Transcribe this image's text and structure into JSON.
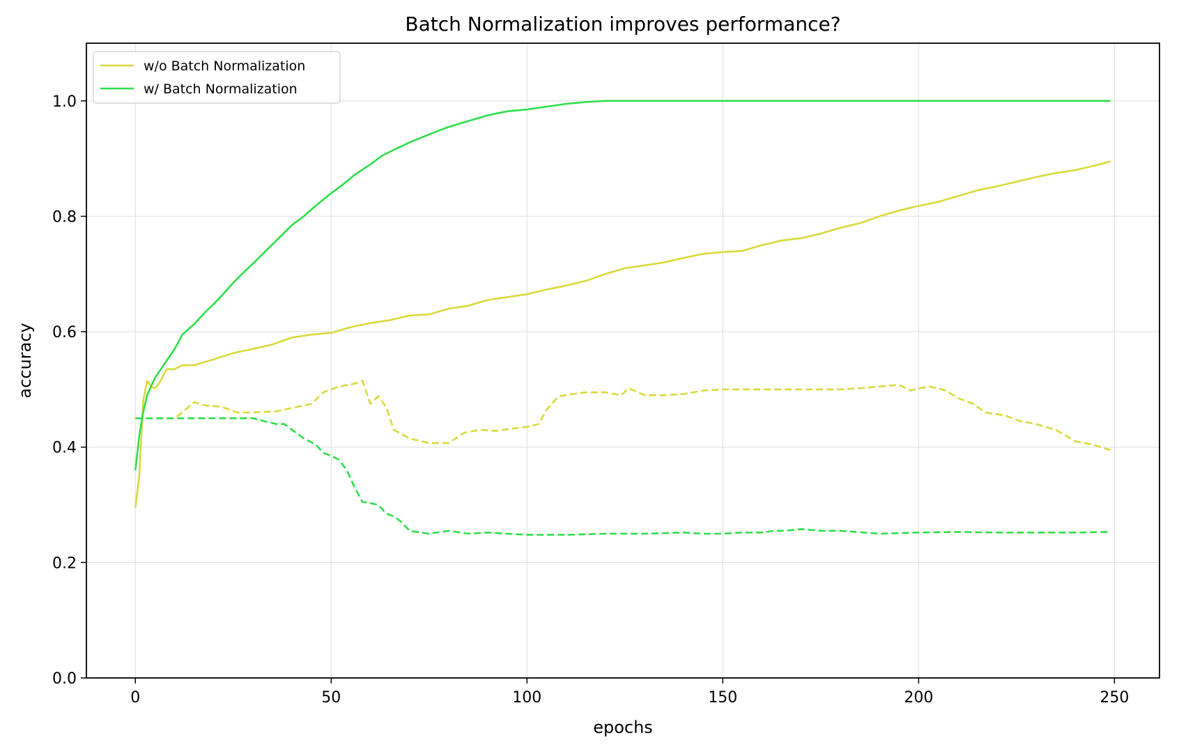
{
  "chart_data": {
    "type": "line",
    "title": "Batch Normalization improves performance?",
    "xlabel": "epochs",
    "ylabel": "accuracy",
    "xlim": [
      -12.5,
      261.5
    ],
    "ylim": [
      0.0,
      1.1
    ],
    "xticks": [
      0,
      50,
      100,
      150,
      200,
      250
    ],
    "yticks": [
      0.0,
      0.2,
      0.4,
      0.6,
      0.8,
      1.0
    ],
    "xtick_labels": [
      "0",
      "50",
      "100",
      "150",
      "200",
      "250"
    ],
    "ytick_labels": [
      "0.0",
      "0.2",
      "0.4",
      "0.6",
      "0.8",
      "1.0"
    ],
    "grid": true,
    "legend_position": "top-left",
    "series": [
      {
        "name": "w/o Batch Normalization",
        "color": "#d9d93a",
        "style": "solid",
        "points": [
          [
            0,
            0.295
          ],
          [
            1,
            0.35
          ],
          [
            2,
            0.48
          ],
          [
            3,
            0.515
          ],
          [
            4,
            0.505
          ],
          [
            5,
            0.502
          ],
          [
            6,
            0.51
          ],
          [
            8,
            0.535
          ],
          [
            10,
            0.535
          ],
          [
            12,
            0.542
          ],
          [
            15,
            0.542
          ],
          [
            20,
            0.552
          ],
          [
            25,
            0.563
          ],
          [
            30,
            0.57
          ],
          [
            35,
            0.578
          ],
          [
            40,
            0.59
          ],
          [
            45,
            0.595
          ],
          [
            50,
            0.598
          ],
          [
            55,
            0.608
          ],
          [
            60,
            0.615
          ],
          [
            65,
            0.62
          ],
          [
            70,
            0.628
          ],
          [
            75,
            0.63
          ],
          [
            80,
            0.64
          ],
          [
            85,
            0.645
          ],
          [
            90,
            0.655
          ],
          [
            95,
            0.66
          ],
          [
            100,
            0.665
          ],
          [
            105,
            0.673
          ],
          [
            110,
            0.68
          ],
          [
            115,
            0.688
          ],
          [
            120,
            0.7
          ],
          [
            125,
            0.71
          ],
          [
            130,
            0.715
          ],
          [
            135,
            0.72
          ],
          [
            140,
            0.728
          ],
          [
            145,
            0.735
          ],
          [
            150,
            0.738
          ],
          [
            155,
            0.74
          ],
          [
            160,
            0.75
          ],
          [
            165,
            0.758
          ],
          [
            170,
            0.762
          ],
          [
            175,
            0.77
          ],
          [
            180,
            0.78
          ],
          [
            185,
            0.788
          ],
          [
            190,
            0.8
          ],
          [
            195,
            0.81
          ],
          [
            200,
            0.818
          ],
          [
            205,
            0.825
          ],
          [
            210,
            0.835
          ],
          [
            215,
            0.845
          ],
          [
            220,
            0.852
          ],
          [
            225,
            0.86
          ],
          [
            230,
            0.868
          ],
          [
            235,
            0.875
          ],
          [
            240,
            0.88
          ],
          [
            245,
            0.888
          ],
          [
            249,
            0.895
          ]
        ]
      },
      {
        "name": "w/ Batch Normalization",
        "color": "#2ddf4a",
        "style": "solid",
        "points": [
          [
            0,
            0.36
          ],
          [
            1,
            0.42
          ],
          [
            2,
            0.46
          ],
          [
            3,
            0.49
          ],
          [
            5,
            0.52
          ],
          [
            7,
            0.54
          ],
          [
            10,
            0.57
          ],
          [
            12,
            0.595
          ],
          [
            15,
            0.613
          ],
          [
            18,
            0.635
          ],
          [
            20,
            0.648
          ],
          [
            22,
            0.662
          ],
          [
            25,
            0.685
          ],
          [
            28,
            0.705
          ],
          [
            30,
            0.718
          ],
          [
            33,
            0.738
          ],
          [
            36,
            0.758
          ],
          [
            40,
            0.785
          ],
          [
            43,
            0.8
          ],
          [
            46,
            0.818
          ],
          [
            50,
            0.84
          ],
          [
            53,
            0.855
          ],
          [
            56,
            0.872
          ],
          [
            60,
            0.89
          ],
          [
            63,
            0.905
          ],
          [
            66,
            0.915
          ],
          [
            70,
            0.928
          ],
          [
            75,
            0.942
          ],
          [
            80,
            0.955
          ],
          [
            85,
            0.965
          ],
          [
            90,
            0.975
          ],
          [
            95,
            0.982
          ],
          [
            100,
            0.985
          ],
          [
            105,
            0.99
          ],
          [
            110,
            0.995
          ],
          [
            115,
            0.998
          ],
          [
            120,
            1.0
          ],
          [
            130,
            1.0
          ],
          [
            150,
            1.0
          ],
          [
            200,
            1.0
          ],
          [
            249,
            1.0
          ]
        ]
      },
      {
        "name": "",
        "color": "#d9d93a",
        "style": "dashed",
        "points": [
          [
            0,
            0.45
          ],
          [
            10,
            0.45
          ],
          [
            12,
            0.46
          ],
          [
            15,
            0.478
          ],
          [
            18,
            0.472
          ],
          [
            22,
            0.47
          ],
          [
            26,
            0.46
          ],
          [
            30,
            0.46
          ],
          [
            36,
            0.462
          ],
          [
            40,
            0.468
          ],
          [
            45,
            0.475
          ],
          [
            48,
            0.495
          ],
          [
            52,
            0.505
          ],
          [
            56,
            0.51
          ],
          [
            58,
            0.515
          ],
          [
            60,
            0.475
          ],
          [
            62,
            0.488
          ],
          [
            64,
            0.47
          ],
          [
            66,
            0.43
          ],
          [
            70,
            0.415
          ],
          [
            75,
            0.407
          ],
          [
            80,
            0.407
          ],
          [
            84,
            0.425
          ],
          [
            88,
            0.43
          ],
          [
            92,
            0.428
          ],
          [
            96,
            0.432
          ],
          [
            100,
            0.435
          ],
          [
            103,
            0.44
          ],
          [
            105,
            0.465
          ],
          [
            108,
            0.488
          ],
          [
            112,
            0.492
          ],
          [
            115,
            0.495
          ],
          [
            120,
            0.495
          ],
          [
            124,
            0.49
          ],
          [
            126,
            0.502
          ],
          [
            130,
            0.49
          ],
          [
            135,
            0.49
          ],
          [
            140,
            0.492
          ],
          [
            145,
            0.498
          ],
          [
            150,
            0.5
          ],
          [
            160,
            0.5
          ],
          [
            170,
            0.5
          ],
          [
            180,
            0.5
          ],
          [
            185,
            0.502
          ],
          [
            190,
            0.505
          ],
          [
            195,
            0.508
          ],
          [
            198,
            0.498
          ],
          [
            200,
            0.502
          ],
          [
            203,
            0.505
          ],
          [
            207,
            0.498
          ],
          [
            210,
            0.485
          ],
          [
            214,
            0.475
          ],
          [
            217,
            0.46
          ],
          [
            222,
            0.455
          ],
          [
            226,
            0.445
          ],
          [
            230,
            0.44
          ],
          [
            235,
            0.43
          ],
          [
            240,
            0.41
          ],
          [
            244,
            0.405
          ],
          [
            249,
            0.395
          ]
        ]
      },
      {
        "name": "",
        "color": "#2ddf4a",
        "style": "dashed",
        "points": [
          [
            0,
            0.45
          ],
          [
            10,
            0.45
          ],
          [
            20,
            0.45
          ],
          [
            30,
            0.45
          ],
          [
            33,
            0.445
          ],
          [
            36,
            0.44
          ],
          [
            38,
            0.44
          ],
          [
            40,
            0.43
          ],
          [
            43,
            0.415
          ],
          [
            46,
            0.405
          ],
          [
            48,
            0.39
          ],
          [
            50,
            0.385
          ],
          [
            52,
            0.378
          ],
          [
            54,
            0.36
          ],
          [
            56,
            0.33
          ],
          [
            58,
            0.305
          ],
          [
            60,
            0.303
          ],
          [
            62,
            0.3
          ],
          [
            64,
            0.285
          ],
          [
            66,
            0.28
          ],
          [
            68,
            0.27
          ],
          [
            70,
            0.255
          ],
          [
            75,
            0.25
          ],
          [
            80,
            0.255
          ],
          [
            85,
            0.25
          ],
          [
            90,
            0.252
          ],
          [
            95,
            0.25
          ],
          [
            100,
            0.248
          ],
          [
            110,
            0.248
          ],
          [
            120,
            0.25
          ],
          [
            130,
            0.25
          ],
          [
            140,
            0.252
          ],
          [
            145,
            0.25
          ],
          [
            150,
            0.25
          ],
          [
            155,
            0.252
          ],
          [
            160,
            0.252
          ],
          [
            163,
            0.255
          ],
          [
            166,
            0.255
          ],
          [
            170,
            0.258
          ],
          [
            175,
            0.255
          ],
          [
            180,
            0.255
          ],
          [
            190,
            0.25
          ],
          [
            200,
            0.252
          ],
          [
            210,
            0.253
          ],
          [
            220,
            0.252
          ],
          [
            230,
            0.252
          ],
          [
            240,
            0.252
          ],
          [
            249,
            0.253
          ]
        ]
      }
    ]
  }
}
